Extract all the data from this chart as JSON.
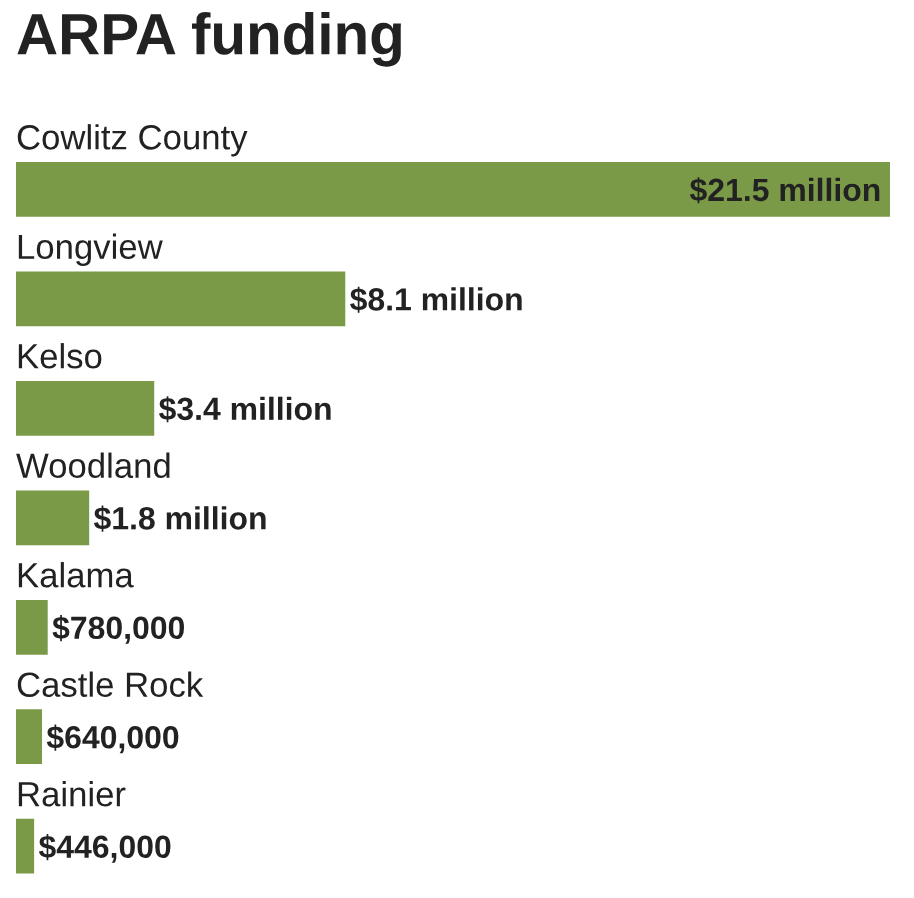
{
  "chart_data": {
    "type": "bar",
    "orientation": "horizontal",
    "title": "ARPA funding",
    "categories": [
      "Cowlitz County",
      "Longview",
      "Kelso",
      "Woodland",
      "Kalama",
      "Castle Rock",
      "Rainier"
    ],
    "values": [
      21500000,
      8100000,
      3400000,
      1800000,
      780000,
      640000,
      446000
    ],
    "value_labels": [
      "$21.5 million",
      "$8.1 million",
      "$3.4 million",
      "$1.8 million",
      "$780,000",
      "$640,000",
      "$446,000"
    ],
    "color": "#7b9a48"
  }
}
